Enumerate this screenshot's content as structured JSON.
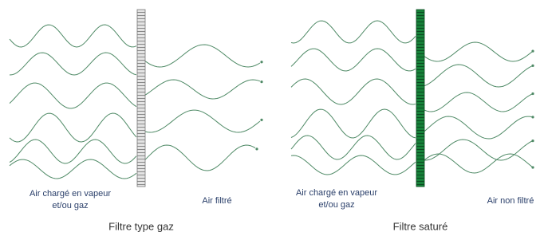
{
  "panels": [
    {
      "input_label": [
        "Air chargé en vapeur",
        "et/ou gaz"
      ],
      "output_label": "Air filtré",
      "caption": "Filtre type gaz"
    },
    {
      "input_label": [
        "Air chargé en vapeur",
        "et/ou gaz"
      ],
      "output_label": "Air non filtré",
      "caption": "Filtre saturé"
    }
  ]
}
